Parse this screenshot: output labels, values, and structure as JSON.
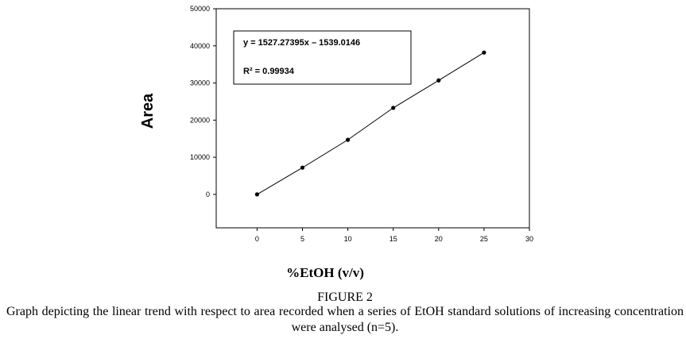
{
  "figure_label": "FIGURE 2",
  "caption": "Graph depicting the linear trend with respect to area recorded when a series of EtOH standard solutions of increasing concentration were analysed (n=5).",
  "chart_data": {
    "type": "scatter",
    "xlabel": "%EtOH (v/v)",
    "ylabel": "Area",
    "xlim": [
      -4.5,
      30
    ],
    "ylim": [
      -9000,
      50000
    ],
    "x_ticks": [
      0,
      5,
      10,
      15,
      20,
      25,
      30
    ],
    "y_ticks": [
      0,
      10000,
      20000,
      30000,
      40000,
      50000
    ],
    "grid": false,
    "trendline": true,
    "series": [
      {
        "x": [
          0,
          5,
          10,
          15,
          20,
          25
        ],
        "y": [
          0,
          7200,
          14700,
          23300,
          30700,
          38200
        ]
      }
    ],
    "annotation": {
      "equation": "y = 1527.27395x – 1539.0146",
      "r_squared": "R² = 0.99934"
    }
  }
}
